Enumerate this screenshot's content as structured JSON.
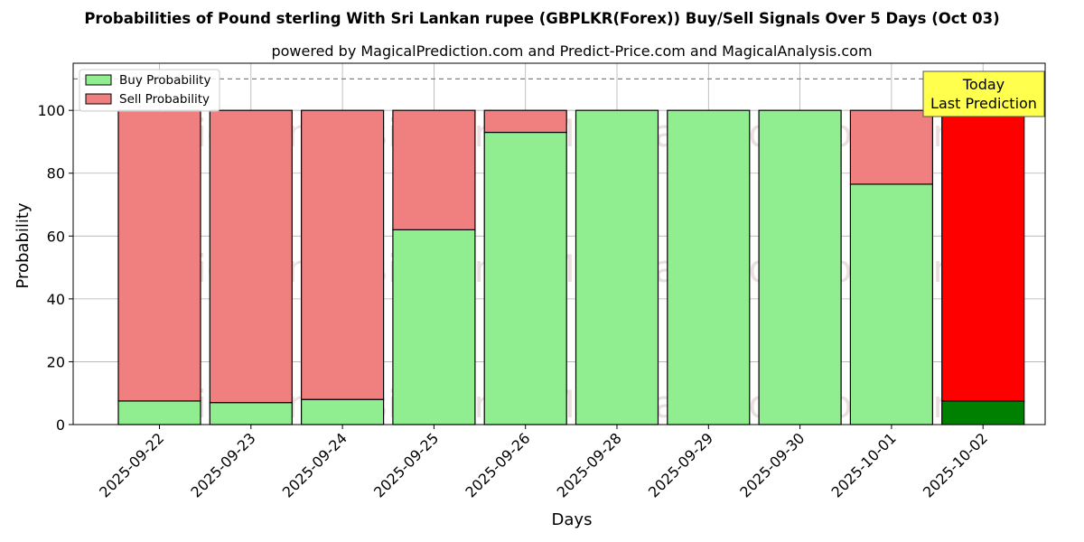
{
  "chart_data": {
    "type": "bar",
    "stacked": true,
    "title": "Probabilities of Pound sterling With Sri Lankan rupee (GBPLKR(Forex)) Buy/Sell Signals Over 5 Days (Oct 03)",
    "subtitle": "powered by MagicalPrediction.com and Predict-Price.com and MagicalAnalysis.com",
    "xlabel": "Days",
    "ylabel": "Probability",
    "ylim": [
      0,
      115
    ],
    "yticks": [
      0,
      20,
      40,
      60,
      80,
      100
    ],
    "reference_line": 110,
    "grid": true,
    "legend_position": "top-left",
    "categories": [
      "2025-09-22",
      "2025-09-23",
      "2025-09-24",
      "2025-09-25",
      "2025-09-26",
      "2025-09-28",
      "2025-09-29",
      "2025-09-30",
      "2025-10-01",
      "2025-10-02"
    ],
    "series": [
      {
        "name": "Buy Probability",
        "values": [
          7.5,
          7,
          8,
          62,
          93,
          100,
          100,
          100,
          76.5,
          7.5
        ],
        "color": "#90ee90",
        "highlight_color": "#008000"
      },
      {
        "name": "Sell Probability",
        "values": [
          92.5,
          93,
          92,
          38,
          7,
          0,
          0,
          0,
          23.5,
          92.5
        ],
        "color": "#f08080",
        "highlight_color": "#ff0000"
      }
    ],
    "highlight_index": 9,
    "annotation": {
      "lines": [
        "Today",
        "Last Prediction"
      ],
      "background": "#ffff4d"
    },
    "watermarks": [
      "MagicalAnalysis.com",
      "MagicalPrediction.com"
    ]
  }
}
